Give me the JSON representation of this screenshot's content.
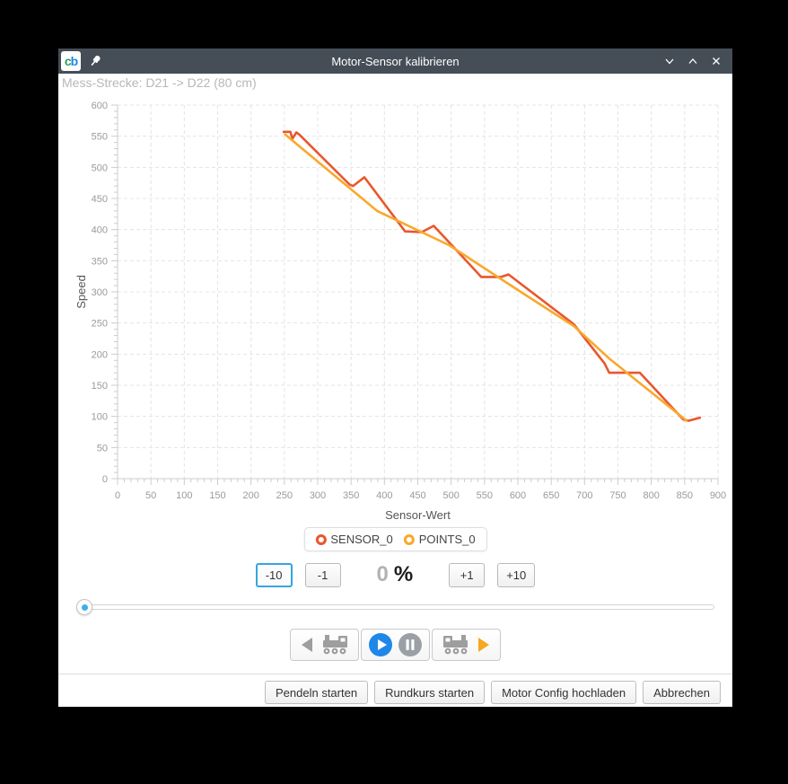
{
  "window": {
    "title": "Motor-Sensor kalibrieren",
    "logo": {
      "c": "c",
      "b": "b"
    },
    "titlebar_color": "#454e57",
    "controls": [
      "minimize",
      "maximize",
      "close"
    ]
  },
  "subtitle": "Mess-Strecke: D21 -> D22 (80 cm)",
  "chart_data": {
    "type": "line",
    "xlabel": "Sensor-Wert",
    "ylabel": "Speed",
    "xlim": [
      0,
      900
    ],
    "ylim": [
      0,
      600
    ],
    "x_tick_step": 50,
    "y_tick_step": 50,
    "minor_tick_step": 10,
    "grid": true,
    "grid_style": "dashed",
    "legend_position": "bottom",
    "series": [
      {
        "name": "SENSOR_0",
        "color": "#e8572d",
        "points": [
          [
            249,
            557
          ],
          [
            259,
            557
          ],
          [
            262,
            546
          ],
          [
            268,
            556
          ],
          [
            272,
            553
          ],
          [
            348,
            472
          ],
          [
            353,
            470
          ],
          [
            370,
            484
          ],
          [
            431,
            397
          ],
          [
            456,
            396
          ],
          [
            474,
            406
          ],
          [
            540,
            330
          ],
          [
            545,
            324
          ],
          [
            575,
            324
          ],
          [
            586,
            328
          ],
          [
            684,
            248
          ],
          [
            730,
            185
          ],
          [
            737,
            170
          ],
          [
            783,
            170
          ],
          [
            848,
            95
          ],
          [
            856,
            93
          ],
          [
            873,
            98
          ]
        ]
      },
      {
        "name": "POINTS_0",
        "color": "#f9a82c",
        "points": [
          [
            251,
            553
          ],
          [
            389,
            430
          ],
          [
            497,
            375
          ],
          [
            597,
            305
          ],
          [
            684,
            245
          ],
          [
            738,
            192
          ],
          [
            853,
            93
          ]
        ]
      }
    ]
  },
  "speed_controls": {
    "dec10": "-10",
    "dec1": "-1",
    "value": "0",
    "unit": "%",
    "inc1": "+1",
    "inc10": "+10"
  },
  "slider": {
    "accent": "#3daee9",
    "value_percent": 0
  },
  "playback": {
    "back_color": "#9e9e9e",
    "train_color": "#9e9e9e",
    "play_color": "#1f87e8",
    "pause_color": "#9aa0a6",
    "forward_color": "#f6a821"
  },
  "footer": {
    "buttons": [
      "Pendeln starten",
      "Rundkurs starten",
      "Motor Config hochladen",
      "Abbrechen"
    ]
  }
}
